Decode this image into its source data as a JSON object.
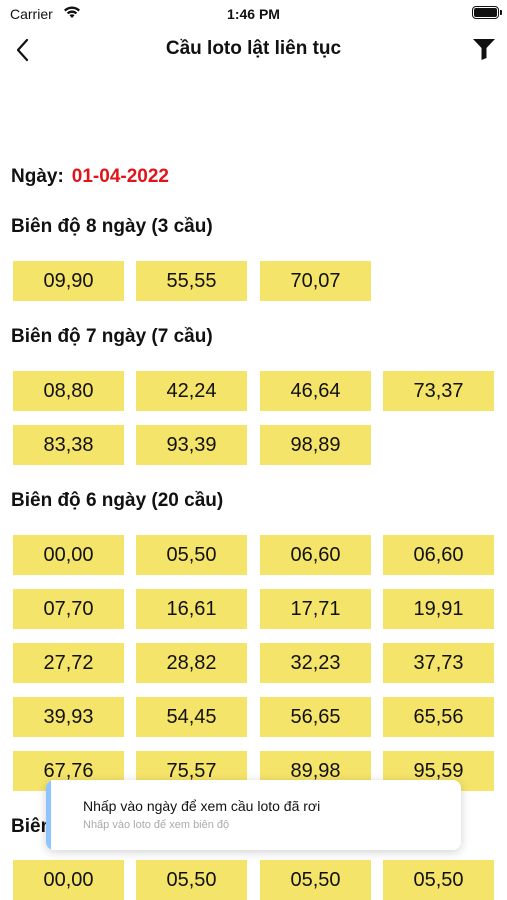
{
  "status_bar": {
    "carrier": "Carrier",
    "time": "1:46 PM"
  },
  "nav": {
    "title": "Cầu loto lật liên tục"
  },
  "date": {
    "label": "Ngày:",
    "value": "01-04-2022"
  },
  "sections": [
    {
      "title": "Biên độ 8 ngày (3 cầu)",
      "items": [
        "09,90",
        "55,55",
        "70,07"
      ]
    },
    {
      "title": "Biên độ 7 ngày (7 cầu)",
      "items": [
        "08,80",
        "42,24",
        "46,64",
        "73,37",
        "83,38",
        "93,39",
        "98,89"
      ]
    },
    {
      "title": "Biên độ 6 ngày (20 cầu)",
      "items": [
        "00,00",
        "05,50",
        "06,60",
        "06,60",
        "07,70",
        "16,61",
        "17,71",
        "19,91",
        "27,72",
        "28,82",
        "32,23",
        "37,73",
        "39,93",
        "54,45",
        "56,65",
        "65,56",
        "67,76",
        "75,57",
        "89,98",
        "95,59"
      ]
    },
    {
      "title": "Biên",
      "items": [
        "00,00",
        "05,50",
        "05,50",
        "05,50"
      ]
    }
  ],
  "toast": {
    "title": "Nhấp vào ngày để xem cầu loto đã rơi",
    "subtitle": "Nhấp vào loto để xem biên độ"
  },
  "colors": {
    "cell_bg": "#f5e46a",
    "date_value": "#e0141a",
    "toast_accent": "#8ec5ff"
  }
}
